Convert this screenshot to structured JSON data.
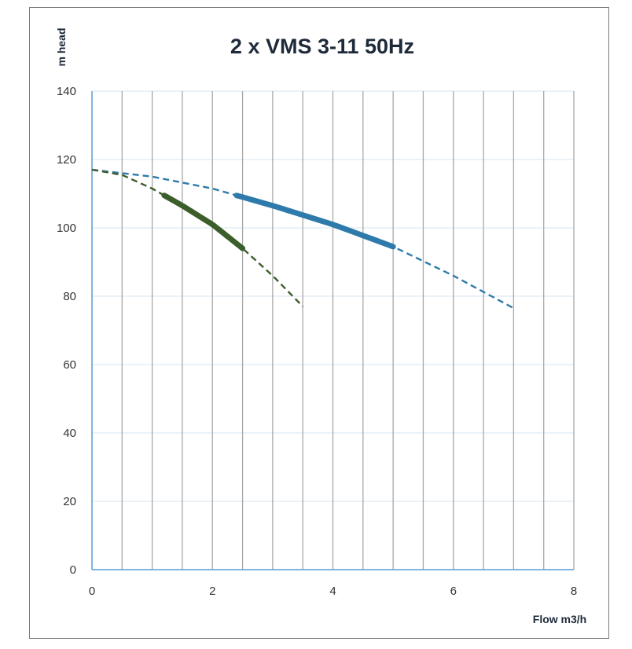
{
  "chart_data": {
    "type": "line",
    "title": "2 x VMS 3-11 50Hz",
    "xlabel": "Flow m3/h",
    "ylabel": "m head",
    "xlim": [
      0,
      8
    ],
    "ylim": [
      0,
      140
    ],
    "x_ticks": [
      "0",
      "2",
      "4",
      "6",
      "8"
    ],
    "y_ticks": [
      "0",
      "20",
      "40",
      "60",
      "80",
      "100",
      "120",
      "140"
    ],
    "x_gridlines": [
      0.5,
      1,
      1.5,
      2,
      2.5,
      3,
      3.5,
      4,
      4.5,
      5,
      5.5,
      6,
      6.5,
      7,
      7.5,
      8
    ],
    "y_gridlines": [
      20,
      40,
      60,
      80,
      100,
      120,
      140
    ],
    "grid": true,
    "legend": "none",
    "series": [
      {
        "color": "#2e7bab",
        "curve": [
          [
            0,
            117
          ],
          [
            1,
            115
          ],
          [
            2,
            111.5
          ],
          [
            3,
            106.5
          ],
          [
            4,
            101
          ],
          [
            5,
            94.5
          ],
          [
            6,
            86
          ],
          [
            7,
            76.5
          ]
        ],
        "operating_range": [
          2.4,
          5
        ]
      },
      {
        "color": "#3b5e2b",
        "curve": [
          [
            0,
            117
          ],
          [
            0.5,
            115.5
          ],
          [
            1,
            111.5
          ],
          [
            1.5,
            106.5
          ],
          [
            2,
            101
          ],
          [
            2.5,
            94
          ],
          [
            3,
            86
          ],
          [
            3.5,
            77
          ]
        ],
        "operating_range": [
          1.2,
          2.5
        ]
      }
    ]
  }
}
